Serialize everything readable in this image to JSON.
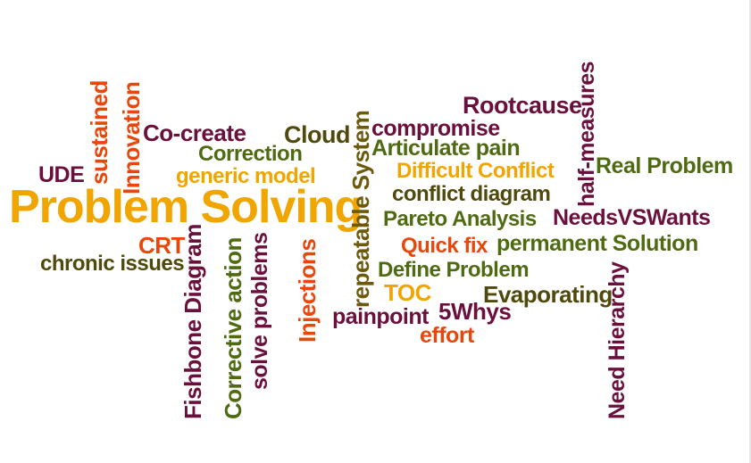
{
  "colors": {
    "maroon": "#6b0f3d",
    "olive": "#4f6b12",
    "orange": "#f0a500",
    "red_orange": "#e8470c",
    "brown_olive": "#6b5a0c"
  },
  "words": [
    "Problem Solving",
    "sustained",
    "Innovation",
    "Co-create",
    "Correction",
    "Cloud",
    "generic model",
    "UDE",
    "repeatable System",
    "compromise",
    "Articulate pain",
    "Rootcause",
    "half-measures",
    "Difficult Conflict",
    "Real Problem",
    "conflict diagram",
    "Pareto Analysis",
    "NeedsVSWants",
    "CRT",
    "chronic issues",
    "Fishbone Diagram",
    "Corrective action",
    "solve problems",
    "Injections",
    "Quick fix",
    "permanent Solution",
    "Define Problem",
    "TOC",
    "Evaporating",
    "Need Hierarchy",
    "painpoint",
    "5Whys",
    "effort"
  ]
}
